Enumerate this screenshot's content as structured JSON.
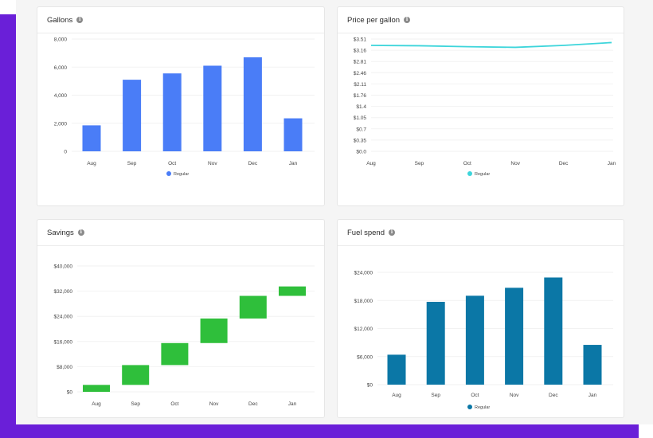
{
  "colors": {
    "gallons": "#4a7df7",
    "price": "#3dd5db",
    "savings": "#2fbf3b",
    "fuel_spend": "#0b77a6"
  },
  "icons": {
    "info": "info-icon",
    "info_glyph": "i"
  },
  "chart_data": [
    {
      "type": "bar",
      "title": "Gallons",
      "categories": [
        "Aug",
        "Sep",
        "Oct",
        "Nov",
        "Dec",
        "Jan"
      ],
      "series": [
        {
          "name": "Regular",
          "values": [
            1850,
            5100,
            5550,
            6100,
            6700,
            2350
          ]
        }
      ],
      "yticks": [
        "0",
        "2,000",
        "4,000",
        "6,000",
        "8,000"
      ],
      "ylim": [
        0,
        8000
      ],
      "legend": "bottom"
    },
    {
      "type": "line",
      "title": "Price per gallon",
      "categories": [
        "Aug",
        "Sep",
        "Oct",
        "Nov",
        "Dec",
        "Jan"
      ],
      "series": [
        {
          "name": "Regular",
          "values": [
            3.31,
            3.3,
            3.27,
            3.25,
            3.31,
            3.4
          ]
        }
      ],
      "yticks": [
        "$0.0",
        "$0.35",
        "$0.7",
        "$1.05",
        "$1.4",
        "$1.76",
        "$2.11",
        "$2.46",
        "$2.81",
        "$3.16",
        "$3.51"
      ],
      "ylim": [
        0,
        3.51
      ],
      "legend": "bottom"
    },
    {
      "type": "bar",
      "title": "Savings",
      "categories": [
        "Aug",
        "Sep",
        "Oct",
        "Nov",
        "Dec",
        "Jan"
      ],
      "series": [
        {
          "name": "Savings",
          "ranges": [
            [
              0,
              2200
            ],
            [
              2200,
              8500
            ],
            [
              8500,
              15500
            ],
            [
              15500,
              23300
            ],
            [
              23300,
              30500
            ],
            [
              30500,
              33500
            ]
          ]
        }
      ],
      "yticks": [
        "$0",
        "$8,000",
        "$16,000",
        "$24,000",
        "$32,000",
        "$40,000"
      ],
      "ylim": [
        0,
        40000
      ]
    },
    {
      "type": "bar",
      "title": "Fuel spend",
      "categories": [
        "Aug",
        "Sep",
        "Oct",
        "Nov",
        "Dec",
        "Jan"
      ],
      "series": [
        {
          "name": "Regular",
          "values": [
            6400,
            17700,
            19000,
            20700,
            22900,
            8500
          ]
        }
      ],
      "yticks": [
        "$0",
        "$6,000",
        "$12,000",
        "$18,000",
        "$24,000"
      ],
      "ylim": [
        0,
        24000
      ],
      "legend": "bottom"
    }
  ]
}
